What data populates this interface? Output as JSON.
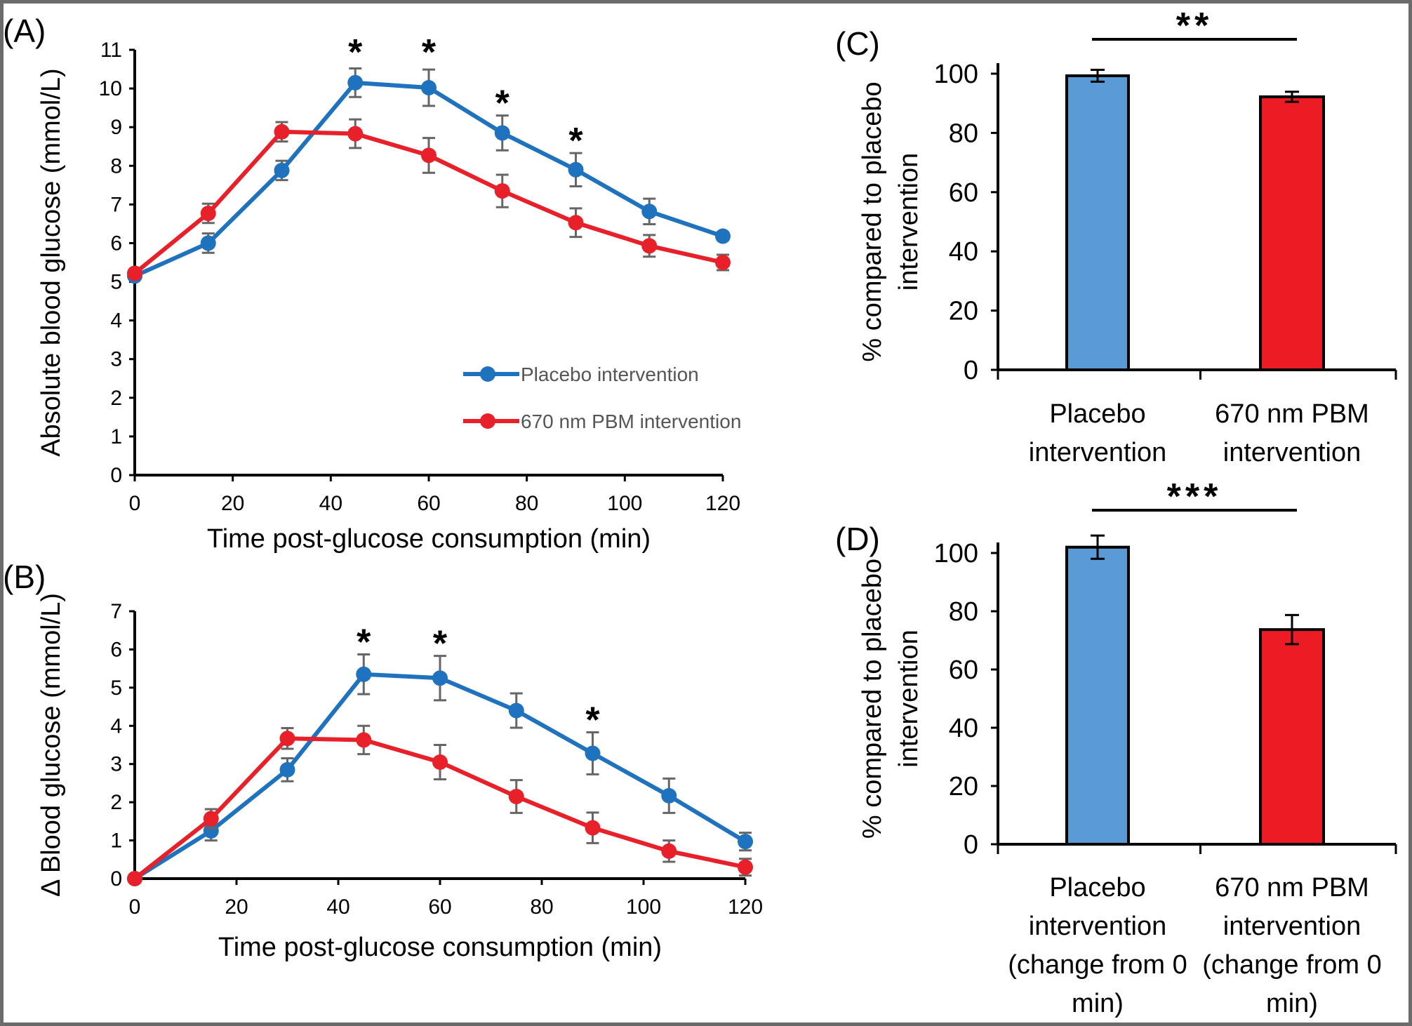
{
  "colors": {
    "placebo": "#1f72bd",
    "pbm": "#e8202a",
    "bar_placebo": "#5b9bd5",
    "bar_pbm": "#ed1c24",
    "error": "#666666"
  },
  "chart_data": [
    {
      "panel": "(A)",
      "type": "line",
      "xlabel": "Time post-glucose consumption (min)",
      "ylabel": "Absolute blood glucose (mmol/L)",
      "xlim": [
        0,
        120
      ],
      "ylim": [
        0,
        11
      ],
      "xticks": [
        0,
        20,
        40,
        60,
        80,
        100,
        120
      ],
      "yticks": [
        0,
        1,
        2,
        3,
        4,
        5,
        6,
        7,
        8,
        9,
        10,
        11
      ],
      "x": [
        0,
        15,
        30,
        45,
        60,
        75,
        90,
        105,
        120
      ],
      "legend": "bottom-right",
      "series": [
        {
          "name": "Placebo intervention",
          "values": [
            5.15,
            6.0,
            7.88,
            10.15,
            10.02,
            8.85,
            7.9,
            6.82,
            6.18
          ],
          "errors": [
            0.08,
            0.25,
            0.25,
            0.37,
            0.47,
            0.45,
            0.43,
            0.33,
            0.1
          ]
        },
        {
          "name": "670 nm PBM intervention",
          "values": [
            5.22,
            6.77,
            8.88,
            8.83,
            8.27,
            7.35,
            6.53,
            5.93,
            5.5
          ],
          "errors": [
            0.08,
            0.25,
            0.25,
            0.37,
            0.45,
            0.42,
            0.37,
            0.28,
            0.2
          ]
        }
      ],
      "significance": [
        {
          "x": 45,
          "label": "*"
        },
        {
          "x": 60,
          "label": "*"
        },
        {
          "x": 75,
          "label": "*"
        },
        {
          "x": 90,
          "label": "*"
        }
      ]
    },
    {
      "panel": "(B)",
      "type": "line",
      "xlabel": "Time post-glucose consumption (min)",
      "ylabel": "Δ Blood glucose (mmol/L)",
      "xlim": [
        0,
        120
      ],
      "ylim": [
        0,
        7
      ],
      "xticks": [
        0,
        20,
        40,
        60,
        80,
        100,
        120
      ],
      "yticks": [
        0,
        1,
        2,
        3,
        4,
        5,
        6,
        7
      ],
      "x": [
        0,
        15,
        30,
        45,
        60,
        75,
        90,
        105,
        120
      ],
      "series": [
        {
          "name": "Placebo intervention",
          "values": [
            0,
            1.25,
            2.85,
            5.35,
            5.25,
            4.4,
            3.28,
            2.17,
            0.97
          ],
          "errors": [
            0,
            0.25,
            0.3,
            0.52,
            0.58,
            0.45,
            0.55,
            0.45,
            0.23
          ]
        },
        {
          "name": "670 nm PBM intervention",
          "values": [
            0,
            1.57,
            3.67,
            3.63,
            3.05,
            2.15,
            1.33,
            0.72,
            0.3
          ],
          "errors": [
            0,
            0.25,
            0.27,
            0.37,
            0.45,
            0.43,
            0.4,
            0.28,
            0.22
          ]
        }
      ],
      "significance": [
        {
          "x": 45,
          "label": "*"
        },
        {
          "x": 60,
          "label": "*"
        },
        {
          "x": 90,
          "label": "*"
        }
      ]
    },
    {
      "panel": "(C)",
      "type": "bar",
      "ylabel": [
        "% compared to placebo",
        "intervention"
      ],
      "ylim": [
        0,
        100
      ],
      "yticks": [
        0,
        20,
        40,
        60,
        80,
        100
      ],
      "categories": [
        [
          "Placebo",
          "intervention"
        ],
        [
          "670 nm PBM",
          "intervention"
        ]
      ],
      "values": [
        99.3,
        92.2
      ],
      "errors": [
        2.0,
        1.7
      ],
      "significance": "**"
    },
    {
      "panel": "(D)",
      "type": "bar",
      "ylabel": [
        "% compared to placebo",
        "intervention"
      ],
      "ylim": [
        0,
        100
      ],
      "yticks": [
        0,
        20,
        40,
        60,
        80,
        100
      ],
      "categories": [
        [
          "Placebo",
          "intervention",
          "(change from 0",
          "min)"
        ],
        [
          "670 nm PBM",
          "intervention",
          "(change from 0",
          "min)"
        ]
      ],
      "values": [
        102,
        73.7
      ],
      "errors": [
        4.0,
        5.0
      ],
      "significance": "***"
    }
  ]
}
